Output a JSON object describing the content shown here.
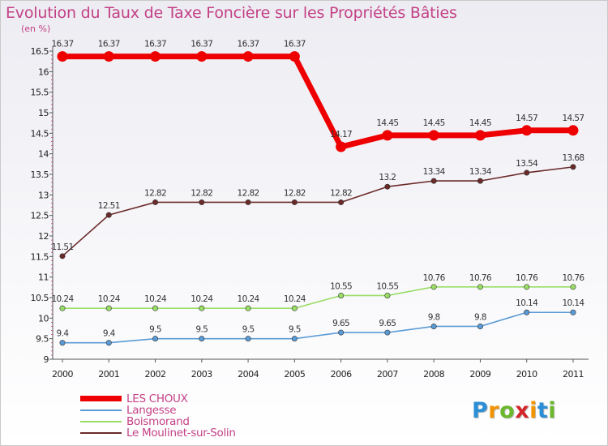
{
  "header": {
    "title": "Evolution du Taux de Taxe Foncière sur les Propriétés Bâties",
    "unit": "(en %)"
  },
  "chart_data": {
    "type": "line",
    "title": "Evolution du Taux de Taxe Foncière sur les Propriétés Bâties",
    "ylabel": "(en %)",
    "xlabel": "",
    "ylim": [
      9,
      16.5
    ],
    "yticks": [
      "16.5",
      "16",
      "15.5",
      "15",
      "14.5",
      "14",
      "13.5",
      "13",
      "12.5",
      "12",
      "11.5",
      "11",
      "10.5",
      "10",
      "9.5",
      "9"
    ],
    "categories": [
      "2000",
      "2001",
      "2002",
      "2003",
      "2004",
      "2005",
      "2006",
      "2007",
      "2008",
      "2009",
      "2010",
      "2011"
    ],
    "series": [
      {
        "name": "LES CHOUX",
        "color": "#ee0000",
        "values": [
          16.37,
          16.37,
          16.37,
          16.37,
          16.37,
          16.37,
          14.17,
          14.45,
          14.45,
          14.45,
          14.57,
          14.57
        ],
        "labels": [
          "16.37",
          "16.37",
          "16.37",
          "16.37",
          "16.37",
          "16.37",
          "14.17",
          "14.45",
          "14.45",
          "14.45",
          "14.57",
          "14.57"
        ]
      },
      {
        "name": "Langesse",
        "color": "#5b9bd5",
        "values": [
          9.4,
          9.4,
          9.5,
          9.5,
          9.5,
          9.5,
          9.65,
          9.65,
          9.8,
          9.8,
          10.14,
          10.14
        ],
        "labels": [
          "9.4",
          "9.4",
          "9.5",
          "9.5",
          "9.5",
          "9.5",
          "9.65",
          "9.65",
          "9.8",
          "9.8",
          "10.14",
          "10.14"
        ]
      },
      {
        "name": "Boismorand",
        "color": "#99dd66",
        "values": [
          10.24,
          10.24,
          10.24,
          10.24,
          10.24,
          10.24,
          10.55,
          10.55,
          10.76,
          10.76,
          10.76,
          10.76
        ],
        "labels": [
          "10.24",
          "10.24",
          "10.24",
          "10.24",
          "10.24",
          "10.24",
          "10.55",
          "10.55",
          "10.76",
          "10.76",
          "10.76",
          "10.76"
        ]
      },
      {
        "name": "Le Moulinet-sur-Solin",
        "color": "#6b2a2a",
        "values": [
          11.51,
          12.51,
          12.82,
          12.82,
          12.82,
          12.82,
          12.82,
          13.2,
          13.34,
          13.34,
          13.54,
          13.68
        ],
        "labels": [
          "11.51",
          "12.51",
          "12.82",
          "12.82",
          "12.82",
          "12.82",
          "12.82",
          "13.2",
          "13.34",
          "13.34",
          "13.54",
          "13.68"
        ]
      }
    ]
  },
  "legend": {
    "items": [
      {
        "label": "LES CHOUX",
        "color": "#ee0000"
      },
      {
        "label": "Langesse",
        "color": "#5b9bd5"
      },
      {
        "label": "Boismorand",
        "color": "#99dd66"
      },
      {
        "label": "Le Moulinet-sur-Solin",
        "color": "#6b2a2a"
      }
    ]
  },
  "logo": {
    "letters": [
      "P",
      "r",
      "o",
      "x",
      "i",
      "t",
      "i"
    ],
    "colors": [
      "#2c8ed6",
      "#f29400",
      "#6bb82d",
      "#d4262a",
      "#f29400",
      "#2c8ed6",
      "#6bb82d"
    ]
  }
}
